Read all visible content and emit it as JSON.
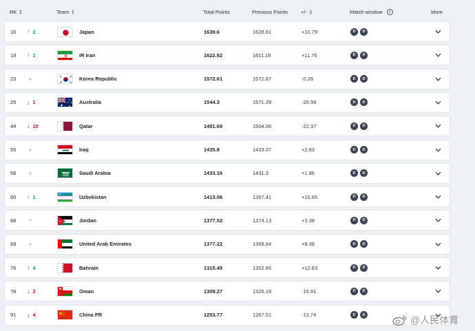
{
  "header": {
    "rk": "RK",
    "team": "Team",
    "total_points": "Total Points",
    "previous_points": "Previous Points",
    "diff": "+/-",
    "match_window": "Match window",
    "more": "More"
  },
  "badge_letter": "D",
  "rows": [
    {
      "rk": "16",
      "dir": "up",
      "move": "2",
      "team": "Japan",
      "flag": "japan",
      "total": "1639.6",
      "prev": "1628.81",
      "diff": "+10.79"
    },
    {
      "rk": "19",
      "dir": "up",
      "move": "1",
      "team": "IR Iran",
      "flag": "iran",
      "total": "1622.92",
      "prev": "1611.16",
      "diff": "+11.76"
    },
    {
      "rk": "23",
      "dir": "none",
      "move": "",
      "team": "Korea Republic",
      "flag": "korea",
      "total": "1572.61",
      "prev": "1572.87",
      "diff": "-0.26"
    },
    {
      "rk": "25",
      "dir": "down",
      "move": "1",
      "team": "Australia",
      "flag": "australia",
      "total": "1544.3",
      "prev": "1571.29",
      "diff": "-26.99"
    },
    {
      "rk": "44",
      "dir": "down",
      "move": "10",
      "team": "Qatar",
      "flag": "qatar",
      "total": "1481.69",
      "prev": "1504.06",
      "diff": "-22.37"
    },
    {
      "rk": "55",
      "dir": "none",
      "move": "",
      "team": "Iraq",
      "flag": "iraq",
      "total": "1435.9",
      "prev": "1433.07",
      "diff": "+2.83"
    },
    {
      "rk": "56",
      "dir": "none",
      "move": "",
      "team": "Saudi Arabia",
      "flag": "saudi",
      "total": "1433.16",
      "prev": "1431.3",
      "diff": "+1.86"
    },
    {
      "rk": "60",
      "dir": "up",
      "move": "1",
      "team": "Uzbekistan",
      "flag": "uzbekistan",
      "total": "1413.06",
      "prev": "1397.41",
      "diff": "+15.65"
    },
    {
      "rk": "68",
      "dir": "none",
      "move": "",
      "team": "Jordan",
      "flag": "jordan",
      "total": "1377.52",
      "prev": "1374.13",
      "diff": "+3.39"
    },
    {
      "rk": "69",
      "dir": "none",
      "move": "",
      "team": "United Arab Emirates",
      "flag": "uae",
      "total": "1377.22",
      "prev": "1368.84",
      "diff": "+8.38"
    },
    {
      "rk": "76",
      "dir": "up",
      "move": "4",
      "team": "Bahrain",
      "flag": "bahrain",
      "total": "1315.49",
      "prev": "1302.86",
      "diff": "+12.63"
    },
    {
      "rk": "78",
      "dir": "down",
      "move": "2",
      "team": "Oman",
      "flag": "oman",
      "total": "1309.27",
      "prev": "1326.18",
      "diff": "-16.91"
    },
    {
      "rk": "91",
      "dir": "down",
      "move": "4",
      "team": "China PR",
      "flag": "china",
      "total": "1253.77",
      "prev": "1267.51",
      "diff": "-13.74"
    }
  ],
  "colors": {
    "up": "#1f9d55",
    "down": "#c8102e",
    "badge": "#3d4350"
  },
  "icons": {
    "sort": "sort-icon",
    "info": "info-icon",
    "expand": "chevron-down-icon",
    "up": "arrow-up-icon",
    "down": "arrow-down-icon"
  },
  "watermark": "@人民体育"
}
